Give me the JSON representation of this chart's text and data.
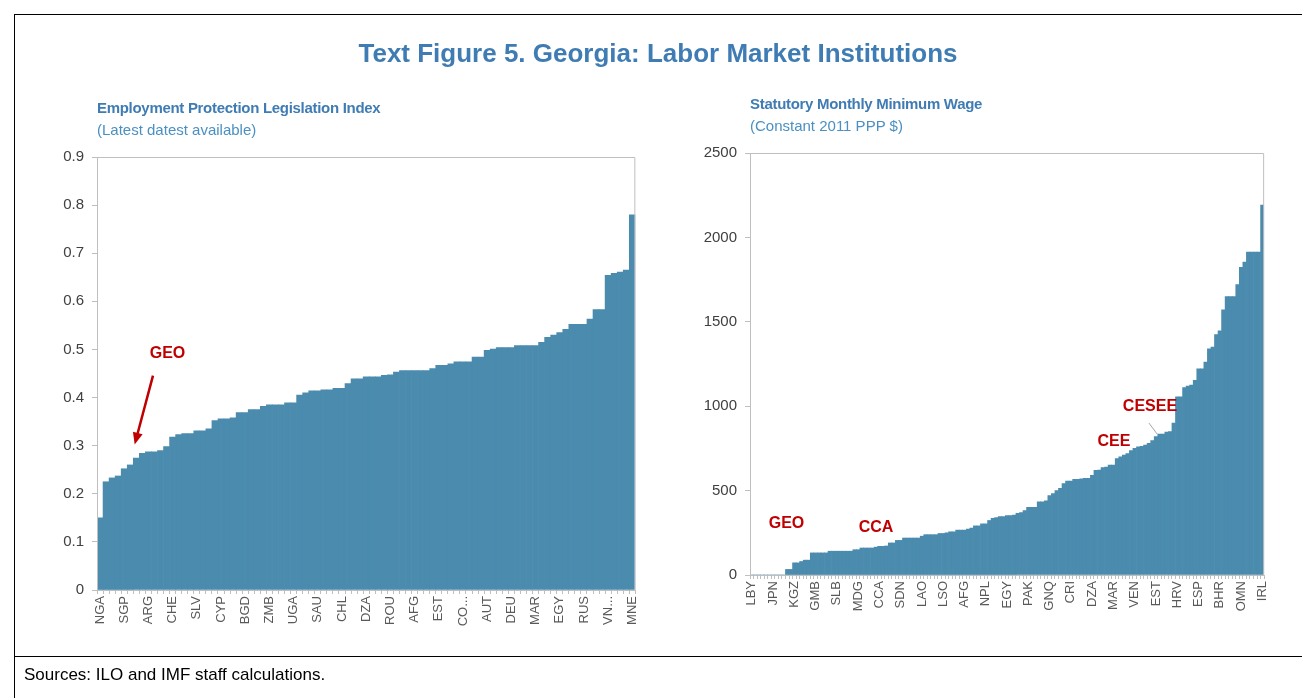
{
  "chart_data": [
    {
      "type": "other",
      "title": "Text Figure 5. Georgia: Labor Market Institutions",
      "annotations": [
        "Sources: ILO and IMF staff calculations."
      ]
    },
    {
      "type": "bar",
      "title": "Employment Protection Legislation Index",
      "subtitle": "(Latest datest available)",
      "color": "#4a8bae",
      "ylim": [
        0,
        0.9
      ],
      "yticks": [
        0,
        0.1,
        0.2,
        0.3,
        0.4,
        0.5,
        0.6,
        0.7,
        0.8,
        0.9
      ],
      "annotations": [
        "GEO"
      ],
      "categories": [
        "NGA",
        null,
        null,
        null,
        "SGP",
        null,
        null,
        null,
        "ARG",
        null,
        null,
        null,
        "CHE",
        null,
        null,
        null,
        "SLV",
        null,
        null,
        null,
        "CYP",
        null,
        null,
        null,
        "BGD",
        null,
        null,
        null,
        "ZMB",
        null,
        null,
        null,
        "UGA",
        null,
        null,
        null,
        "SAU",
        null,
        null,
        null,
        "CHL",
        null,
        null,
        null,
        "DZA",
        null,
        null,
        null,
        "ROU",
        null,
        null,
        null,
        "AFG",
        null,
        null,
        null,
        "EST",
        null,
        null,
        null,
        "CO...",
        null,
        null,
        null,
        "AUT",
        null,
        null,
        null,
        "DEU",
        null,
        null,
        null,
        "MAR",
        null,
        null,
        null,
        "EGY",
        null,
        null,
        null,
        "RUS",
        null,
        null,
        null,
        "VN...",
        null,
        null,
        null,
        "MNE"
      ],
      "values": [
        0.15,
        0.225,
        0.233,
        0.237,
        0.252,
        0.26,
        0.274,
        0.284,
        0.287,
        0.287,
        0.29,
        0.298,
        0.318,
        0.323,
        0.325,
        0.325,
        0.331,
        0.331,
        0.335,
        0.352,
        0.356,
        0.356,
        0.358,
        0.369,
        0.369,
        0.375,
        0.375,
        0.382,
        0.385,
        0.385,
        0.385,
        0.389,
        0.389,
        0.405,
        0.41,
        0.414,
        0.414,
        0.416,
        0.416,
        0.419,
        0.419,
        0.429,
        0.439,
        0.439,
        0.443,
        0.443,
        0.443,
        0.446,
        0.447,
        0.453,
        0.456,
        0.456,
        0.456,
        0.456,
        0.456,
        0.46,
        0.467,
        0.467,
        0.47,
        0.474,
        0.474,
        0.474,
        0.484,
        0.484,
        0.498,
        0.501,
        0.504,
        0.504,
        0.504,
        0.508,
        0.508,
        0.508,
        0.508,
        0.515,
        0.525,
        0.53,
        0.535,
        0.542,
        0.552,
        0.552,
        0.552,
        0.563,
        0.583,
        0.583,
        0.654,
        0.658,
        0.661,
        0.665,
        0.78
      ]
    },
    {
      "type": "bar",
      "title": "Statutory Monthly Minimum Wage",
      "subtitle": "(Constant 2011 PPP $)",
      "color": "#4a8bae",
      "ylim": [
        0,
        2500
      ],
      "yticks": [
        0,
        500,
        1000,
        1500,
        2000,
        2500
      ],
      "annotations": [
        "GEO",
        "CCA",
        "CEE",
        {
          "text": "CESEE",
          "y": 835
        }
      ],
      "categories": [
        "LBY",
        null,
        null,
        null,
        null,
        null,
        "JPN",
        null,
        null,
        null,
        null,
        null,
        "KGZ",
        null,
        null,
        null,
        null,
        null,
        "GMB",
        null,
        null,
        null,
        null,
        null,
        "SLB",
        null,
        null,
        null,
        null,
        null,
        "MDG",
        null,
        null,
        null,
        null,
        null,
        "CCA",
        null,
        null,
        null,
        null,
        null,
        "SDN",
        null,
        null,
        null,
        null,
        null,
        "LAO",
        null,
        null,
        null,
        null,
        null,
        "LSO",
        null,
        null,
        null,
        null,
        null,
        "AFG",
        null,
        null,
        null,
        null,
        null,
        "NPL",
        null,
        null,
        null,
        null,
        null,
        "EGY",
        null,
        null,
        null,
        null,
        null,
        "PAK",
        null,
        null,
        null,
        null,
        null,
        "GNQ",
        null,
        null,
        null,
        null,
        null,
        "CRI",
        null,
        null,
        null,
        null,
        null,
        "DZA",
        null,
        null,
        null,
        null,
        null,
        "MAR",
        null,
        null,
        null,
        null,
        null,
        "VEN",
        null,
        null,
        null,
        null,
        null,
        "EST",
        null,
        null,
        null,
        null,
        null,
        "HRV",
        null,
        null,
        null,
        null,
        null,
        "ESP",
        null,
        null,
        null,
        null,
        null,
        "BHR",
        null,
        null,
        null,
        null,
        null,
        "OMN",
        null,
        null,
        null,
        null,
        null,
        "IRL"
      ],
      "values": [
        0,
        0,
        0,
        0,
        0,
        0,
        0,
        0,
        0,
        0,
        33,
        33,
        72,
        72,
        80,
        88,
        88,
        131,
        131,
        131,
        131,
        131,
        141,
        141,
        141,
        141,
        141,
        141,
        141,
        150,
        150,
        160,
        160,
        160,
        160,
        165,
        170,
        170,
        172,
        190,
        190,
        205,
        205,
        219,
        219,
        219,
        219,
        219,
        230,
        239,
        239,
        239,
        239,
        246,
        246,
        250,
        256,
        256,
        266,
        266,
        266,
        272,
        278,
        291,
        291,
        303,
        303,
        323,
        336,
        340,
        346,
        346,
        352,
        352,
        355,
        366,
        370,
        381,
        401,
        401,
        401,
        434,
        434,
        440,
        470,
        483,
        500,
        514,
        542,
        557,
        557,
        567,
        567,
        570,
        573,
        573,
        590,
        620,
        622,
        636,
        640,
        651,
        651,
        690,
        700,
        710,
        720,
        737,
        750,
        759,
        762,
        769,
        780,
        796,
        820,
        835,
        835,
        847,
        850,
        900,
        1056,
        1056,
        1110,
        1119,
        1125,
        1154,
        1222,
        1222,
        1262,
        1340,
        1350,
        1424,
        1447,
        1571,
        1649,
        1649,
        1649,
        1721,
        1823,
        1854,
        1913,
        1913,
        1913,
        1913,
        2191
      ]
    }
  ]
}
